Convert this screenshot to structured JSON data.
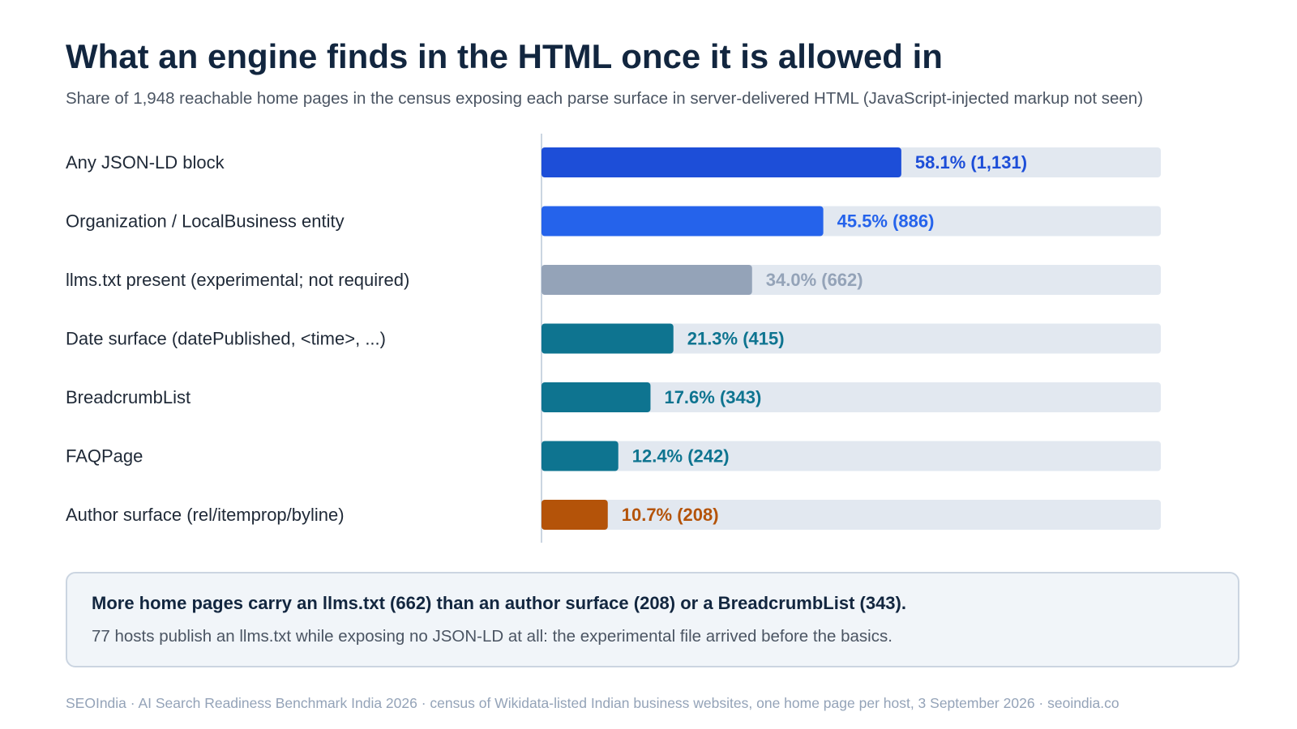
{
  "title": "What an engine finds in the HTML once it is allowed in",
  "subtitle": "Share of 1,948 reachable home pages in the census exposing each parse surface in server-delivered HTML (JavaScript-injected markup not seen)",
  "chart_data": {
    "type": "bar",
    "orientation": "horizontal",
    "title": "What an engine finds in the HTML once it is allowed in",
    "subtitle": "Share of 1,948 reachable home pages in the census exposing each parse surface in server-delivered HTML (JavaScript-injected markup not seen)",
    "categories": [
      "Any JSON-LD block",
      "Organization / LocalBusiness entity",
      "llms.txt present (experimental; not required)",
      "Date surface (datePublished, <time>, ...)",
      "BreadcrumbList",
      "FAQPage",
      "Author surface (rel/itemprop/byline)"
    ],
    "values": [
      58.1,
      45.5,
      34.0,
      21.3,
      17.6,
      12.4,
      10.7
    ],
    "counts": [
      1131,
      886,
      662,
      415,
      343,
      242,
      208
    ],
    "value_labels": [
      "58.1% (1,131)",
      "45.5% (886)",
      "34.0% (662)",
      "21.3% (415)",
      "17.6% (343)",
      "12.4% (242)",
      "10.7% (208)"
    ],
    "colors": [
      "#1d4ed8",
      "#2563eb",
      "#94a3b8",
      "#0e7490",
      "#0e7490",
      "#0e7490",
      "#b45309"
    ],
    "track_color": "#e2e8f0",
    "xlim": [
      0,
      100
    ],
    "grid": false,
    "legend": "none"
  },
  "callout": {
    "headline": "More home pages carry an llms.txt (662) than an author surface (208) or a BreadcrumbList (343).",
    "body": "77 hosts publish an llms.txt while exposing no JSON-LD at all: the experimental file arrived before the basics."
  },
  "footer": "SEOIndia · AI Search Readiness Benchmark India 2026 · census of Wikidata-listed Indian business websites, one home page per host, 3 September 2026 · seoindia.co"
}
